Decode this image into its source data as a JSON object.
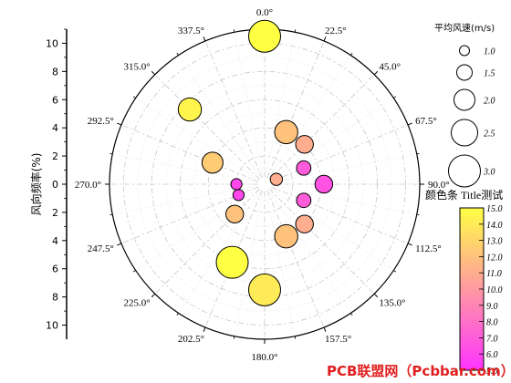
{
  "chart_data": {
    "type": "scatter",
    "subtype": "polar-bubble (wind rose)",
    "r_axis": {
      "label": "风向频率(%)",
      "ticks_up": [
        "10",
        "8",
        "6",
        "4",
        "2",
        "0"
      ],
      "ticks_down": [
        "2",
        "4",
        "6",
        "8",
        "10"
      ],
      "range": [
        0,
        11
      ]
    },
    "theta_axis": {
      "direction": "clockwise",
      "zero": "top",
      "ticks": [
        "0.0°",
        "22.5°",
        "45.0°",
        "67.5°",
        "90.0°",
        "112.5°",
        "135.0°",
        "157.5°",
        "180.0°",
        "202.5°",
        "225.0°",
        "247.5°",
        "270.0°",
        "292.5°",
        "315.0°",
        "337.5°"
      ]
    },
    "grid": true,
    "size_legend": {
      "title": "平均风速(m/s)",
      "items": [
        {
          "label": "1.0",
          "value": 1.0
        },
        {
          "label": "1.5",
          "value": 1.5
        },
        {
          "label": "2.0",
          "value": 2.0
        },
        {
          "label": "2.5",
          "value": 2.5
        },
        {
          "label": "3.0",
          "value": 3.0
        }
      ]
    },
    "colorbar": {
      "title": "颜色条 Title测试",
      "ticks": [
        "15.0",
        "14.0",
        "13.0",
        "12.0",
        "11.0",
        "10.0",
        "9.0",
        "8.0",
        "7.0",
        "6.0",
        "5.0"
      ],
      "range": [
        5,
        15
      ],
      "colors": [
        "#ff33ff",
        "#ffff44"
      ]
    },
    "points": [
      {
        "theta": 0.0,
        "r": 10.5,
        "speed": 3.0,
        "color_value": 15.0
      },
      {
        "theta": 22.5,
        "r": 4.0,
        "speed": 2.2,
        "color_value": 12.0
      },
      {
        "theta": 45.0,
        "r": 4.0,
        "speed": 1.7,
        "color_value": 11.0
      },
      {
        "theta": 67.5,
        "r": 3.0,
        "speed": 1.4,
        "color_value": 7.0
      },
      {
        "theta": 90.0,
        "r": 4.2,
        "speed": 1.7,
        "color_value": 6.5
      },
      {
        "theta": 112.5,
        "r": 3.0,
        "speed": 1.4,
        "color_value": 7.0
      },
      {
        "theta": 135.0,
        "r": 4.0,
        "speed": 1.7,
        "color_value": 11.0
      },
      {
        "theta": 157.5,
        "r": 4.0,
        "speed": 2.2,
        "color_value": 12.0
      },
      {
        "theta": 180.0,
        "r": 7.5,
        "speed": 3.0,
        "color_value": 14.0
      },
      {
        "theta": 202.5,
        "r": 6.0,
        "speed": 3.0,
        "color_value": 15.0
      },
      {
        "theta": 225.0,
        "r": 3.0,
        "speed": 1.7,
        "color_value": 12.0
      },
      {
        "theta": 247.5,
        "r": 2.0,
        "speed": 1.1,
        "color_value": 6.0
      },
      {
        "theta": 270.0,
        "r": 2.0,
        "speed": 1.1,
        "color_value": 6.0
      },
      {
        "theta": 292.5,
        "r": 4.0,
        "speed": 2.0,
        "color_value": 12.5
      },
      {
        "theta": 315.0,
        "r": 7.5,
        "speed": 2.2,
        "color_value": 14.5
      },
      {
        "theta": 67.5,
        "r": 0.9,
        "speed": 1.2,
        "color_value": 11.0
      }
    ]
  },
  "watermark": "PCB联盟网（Pcbbar.com）"
}
